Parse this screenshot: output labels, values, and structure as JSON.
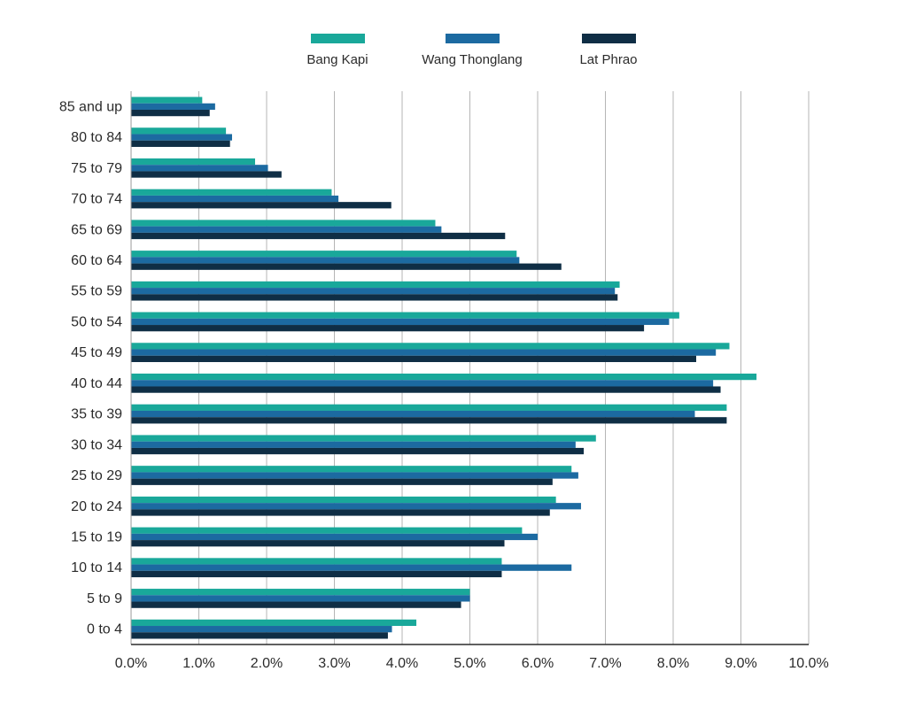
{
  "chart_data": {
    "type": "bar",
    "orientation": "horizontal",
    "title": "",
    "xlabel": "",
    "ylabel": "",
    "xlim": [
      0,
      10
    ],
    "x_tick_values": [
      0,
      1,
      2,
      3,
      4,
      5,
      6,
      7,
      8,
      9,
      10
    ],
    "x_tick_labels": [
      "0.0%",
      "1.0%",
      "2.0%",
      "3.0%",
      "4.0%",
      "5.0%",
      "6.0%",
      "7.0%",
      "8.0%",
      "9.0%",
      "10.0%"
    ],
    "grid": "vertical",
    "legend_position": "top",
    "categories": [
      "85 and up",
      "80 to 84",
      "75 to 79",
      "70 to 74",
      "65 to 69",
      "60 to 64",
      "55 to 59",
      "50 to 54",
      "45 to 49",
      "40 to 44",
      "35 to 39",
      "30 to 34",
      "25 to 29",
      "20 to 24",
      "15 to 19",
      "10 to 14",
      "5 to 9",
      "0 to 4"
    ],
    "series": [
      {
        "name": "Bang Kapi",
        "color": "#19a89a",
        "values": [
          1.05,
          1.4,
          1.83,
          2.96,
          4.49,
          5.69,
          7.21,
          8.09,
          8.83,
          9.23,
          8.79,
          6.86,
          6.5,
          6.27,
          5.77,
          5.47,
          5.0,
          4.21
        ]
      },
      {
        "name": "Wang Thonglang",
        "color": "#1c6aa1",
        "values": [
          1.24,
          1.49,
          2.02,
          3.06,
          4.58,
          5.73,
          7.14,
          7.94,
          8.63,
          8.59,
          8.32,
          6.56,
          6.6,
          6.64,
          6.0,
          6.5,
          5.0,
          3.85
        ]
      },
      {
        "name": "Lat Phrao",
        "color": "#0f2e45",
        "values": [
          1.16,
          1.46,
          2.22,
          3.84,
          5.52,
          6.35,
          7.18,
          7.57,
          8.34,
          8.7,
          8.79,
          6.68,
          6.22,
          6.18,
          5.51,
          5.47,
          4.87,
          3.79
        ]
      }
    ]
  }
}
